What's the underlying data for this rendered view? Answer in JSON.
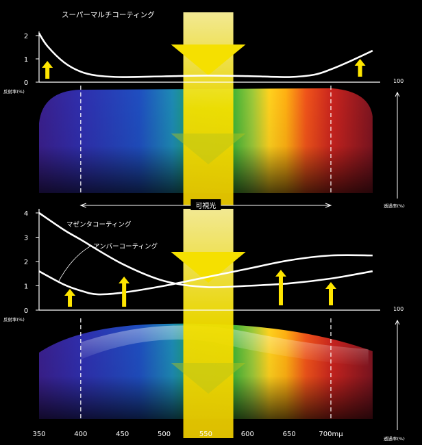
{
  "chart_data": [
    {
      "type": "line",
      "title": "スーパーマルチコーティング",
      "ylabel": "反射率(%)",
      "y2label": "透過率(%)",
      "y2_tick": "100",
      "ylim": [
        0,
        2
      ],
      "y_ticks": [
        "0",
        "1",
        "2"
      ],
      "xlim": [
        350,
        750
      ],
      "series": [
        {
          "name": "",
          "x": [
            350,
            360,
            380,
            400,
            420,
            450,
            500,
            550,
            600,
            650,
            680,
            700,
            720,
            750
          ],
          "y": [
            2.1,
            1.55,
            0.85,
            0.45,
            0.28,
            0.22,
            0.25,
            0.28,
            0.26,
            0.22,
            0.32,
            0.55,
            0.85,
            1.35
          ]
        }
      ],
      "annotation": ""
    },
    {
      "type": "line",
      "ylabel": "反射率(%)",
      "y2label": "透過率(%)",
      "y2_tick": "100",
      "ylim": [
        0,
        4
      ],
      "y_ticks": [
        "0",
        "1",
        "2",
        "3",
        "4"
      ],
      "xlim": [
        350,
        750
      ],
      "x_ticks": [
        "350",
        "400",
        "450",
        "500",
        "550",
        "600",
        "650",
        "700mμ"
      ],
      "x_tick_values": [
        350,
        400,
        450,
        500,
        550,
        600,
        650,
        700
      ],
      "series": [
        {
          "name": "マゼンタコーティング",
          "x": [
            350,
            380,
            400,
            450,
            500,
            550,
            600,
            650,
            700,
            750
          ],
          "y": [
            4.0,
            3.3,
            2.9,
            1.9,
            1.2,
            0.95,
            1.0,
            1.1,
            1.3,
            1.6
          ]
        },
        {
          "name": "アンバーコーティング",
          "x": [
            350,
            380,
            400,
            420,
            450,
            500,
            550,
            600,
            650,
            700,
            750
          ],
          "y": [
            1.6,
            1.05,
            0.8,
            0.65,
            0.72,
            1.0,
            1.35,
            1.7,
            2.05,
            2.25,
            2.25
          ]
        }
      ]
    }
  ],
  "visible_light_label": "可視光",
  "colors": {
    "beam": "#f5e000",
    "arrow": "#ffe600",
    "curve": "#ffffff"
  }
}
